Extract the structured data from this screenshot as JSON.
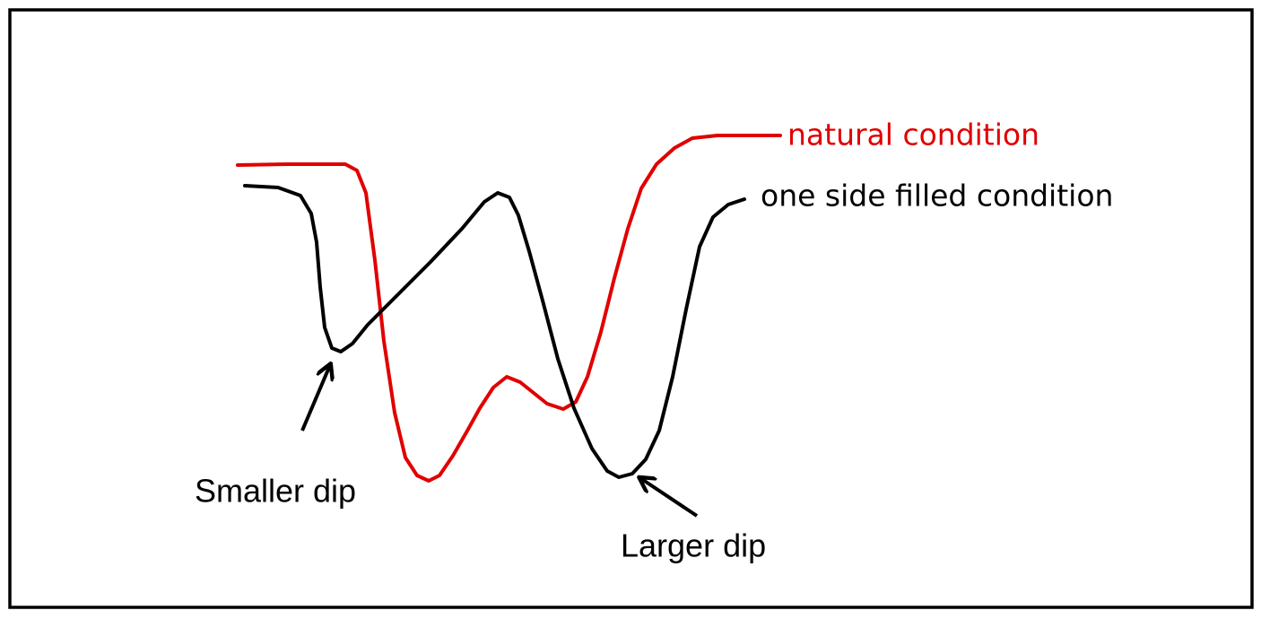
{
  "curves": [
    {
      "label": "natural condition"
    },
    {
      "label": "one side filled condition"
    }
  ],
  "annotations": [
    {
      "text": "Smaller dip"
    },
    {
      "text": "Larger dip"
    }
  ]
}
